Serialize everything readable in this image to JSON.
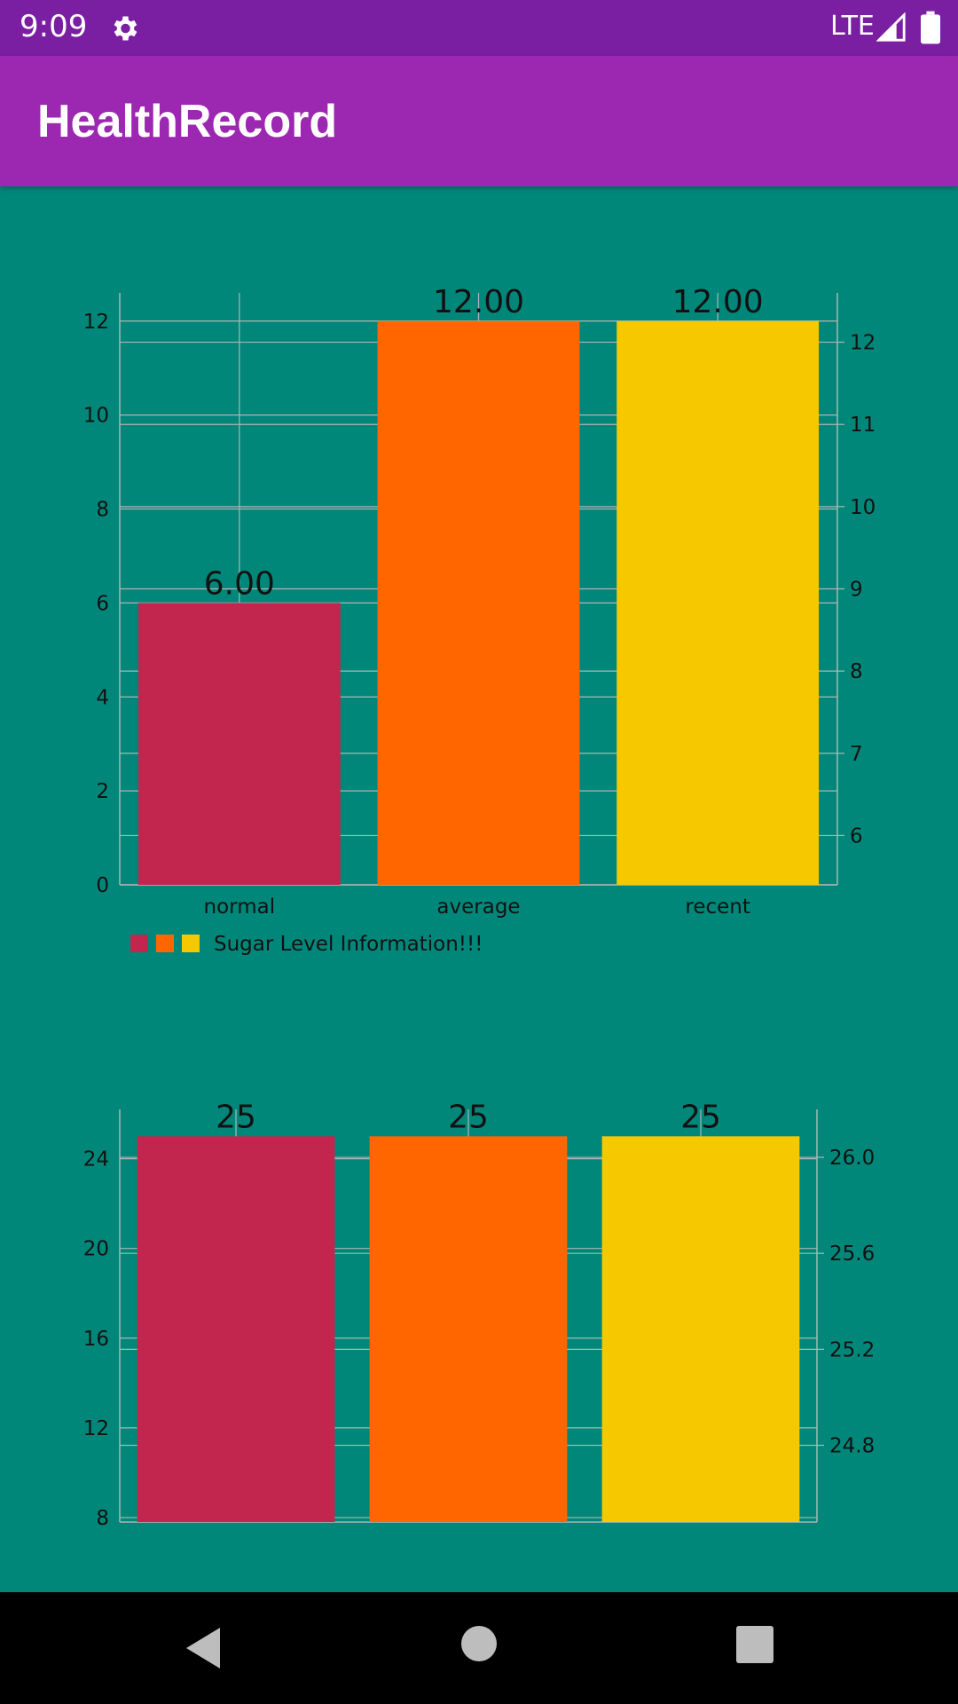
{
  "status_bar": {
    "time": "9:09",
    "network": "LTE"
  },
  "app": {
    "title": "HealthRecord"
  },
  "colors": {
    "bar1": "#C2264F",
    "bar2": "#FF6600",
    "bar3": "#F5C800",
    "background": "#00877A",
    "grid": "#A9B7B4"
  },
  "chart_data": [
    {
      "type": "bar",
      "categories": [
        "normal",
        "average",
        "recent"
      ],
      "values": [
        6,
        12,
        12
      ],
      "value_labels": [
        "6.00",
        "12.00",
        "12.00"
      ],
      "left_axis": {
        "min": 0,
        "max": 12.6,
        "ticks": [
          0,
          2,
          4,
          6,
          8,
          10,
          12
        ]
      },
      "right_axis": {
        "min": 5.4,
        "max": 12.6,
        "ticks": [
          6,
          7,
          8,
          9,
          10,
          11,
          12
        ]
      },
      "legend": {
        "label": "Sugar Level Information!!!",
        "placement": "bottom-left"
      },
      "grid": true
    },
    {
      "type": "bar",
      "categories": [
        "",
        "",
        ""
      ],
      "values": [
        25,
        25,
        25
      ],
      "value_labels": [
        "25",
        "25",
        "25"
      ],
      "left_axis": {
        "min": 7.8,
        "max": 26.2,
        "ticks": [
          8,
          12,
          16,
          20,
          24
        ]
      },
      "right_axis": {
        "min": 24.48,
        "max": 26.2,
        "ticks": [
          24.8,
          25.2,
          25.6,
          26.0
        ]
      },
      "grid": true
    }
  ]
}
